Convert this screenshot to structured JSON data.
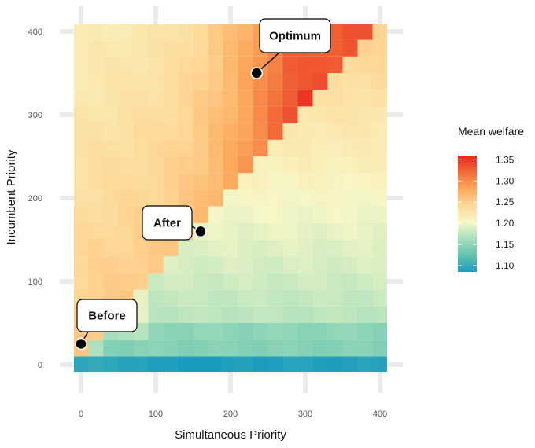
{
  "chart_data": {
    "type": "heatmap",
    "title": "",
    "xlabel": "Simultaneous Priority",
    "ylabel": "Incumbent Priority",
    "xlim": [
      0,
      400
    ],
    "ylim": [
      0,
      400
    ],
    "x_ticks": [
      0,
      100,
      200,
      300,
      400
    ],
    "y_ticks": [
      0,
      100,
      200,
      300,
      400
    ],
    "grid_step": 20,
    "legend": {
      "title": "Mean welfare",
      "position": "right",
      "ticks": [
        1.35,
        1.3,
        1.25,
        1.2,
        1.15,
        1.1
      ],
      "range": [
        1.085,
        1.36
      ],
      "colors": [
        "#1a9bc0",
        "#62c3ae",
        "#a9dfbd",
        "#f7f7c6",
        "#fed897",
        "#fca95c",
        "#f26b3a",
        "#e8261d"
      ]
    },
    "annotations": [
      {
        "label": "Before",
        "x": 0,
        "y": 25
      },
      {
        "label": "After",
        "x": 160,
        "y": 160
      },
      {
        "label": "Optimum",
        "x": 235,
        "y": 350
      }
    ]
  }
}
